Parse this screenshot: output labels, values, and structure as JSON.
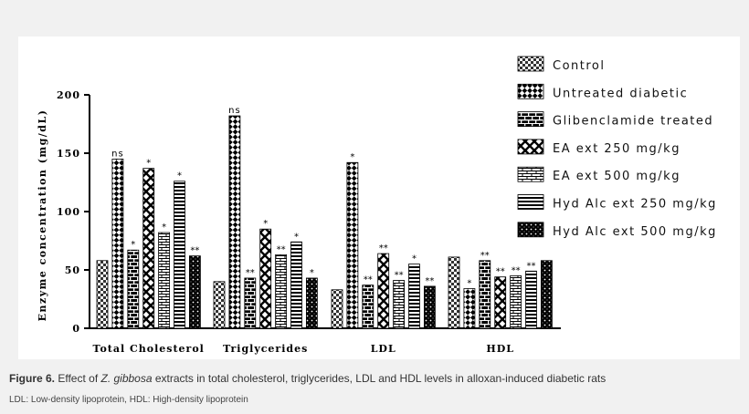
{
  "chart_data": {
    "type": "bar",
    "ylabel": "Enzyme concentration (mg/dL)",
    "ylim": [
      0,
      200
    ],
    "yticks": [
      0,
      50,
      100,
      150,
      200
    ],
    "categories": [
      "Total Cholesterol",
      "Triglycerides",
      "LDL",
      "HDL"
    ],
    "legend_position": "right",
    "series": [
      {
        "name": "Control",
        "pattern": "check",
        "values": [
          58,
          40,
          33,
          61
        ],
        "labels": [
          "",
          "",
          "",
          ""
        ]
      },
      {
        "name": "Untreated diabetic",
        "pattern": "diamond-check",
        "values": [
          145,
          182,
          142,
          34
        ],
        "labels": [
          "ns",
          "ns",
          "*",
          "*"
        ]
      },
      {
        "name": "Glibenclamide treated",
        "pattern": "brick",
        "values": [
          67,
          43,
          37,
          58
        ],
        "labels": [
          "*",
          "**",
          "**",
          "**"
        ]
      },
      {
        "name": "EA ext 250 mg/kg",
        "pattern": "cross",
        "values": [
          137,
          85,
          64,
          44
        ],
        "labels": [
          "*",
          "*",
          "**",
          "**"
        ]
      },
      {
        "name": "EA ext 500 mg/kg",
        "pattern": "hbrick",
        "values": [
          82,
          63,
          41,
          45
        ],
        "labels": [
          "*",
          "**",
          "**",
          "**"
        ]
      },
      {
        "name": "Hyd Alc ext 250 mg/kg",
        "pattern": "hstripe",
        "values": [
          126,
          74,
          55,
          49
        ],
        "labels": [
          "*",
          "*",
          "*",
          "**"
        ]
      },
      {
        "name": "Hyd Alc ext 500 mg/kg",
        "pattern": "dots",
        "values": [
          62,
          43,
          36,
          58
        ],
        "labels": [
          "**",
          "*",
          "**",
          ""
        ]
      }
    ]
  },
  "caption": {
    "label": "Figure 6.",
    "pre": " Effect of ",
    "species": "Z. gibbosa",
    "post": " extracts in total cholesterol, triglycerides, LDL and HDL levels in alloxan-induced diabetic rats"
  },
  "abbreviations": "LDL: Low-density lipoprotein, HDL: High-density lipoprotein"
}
